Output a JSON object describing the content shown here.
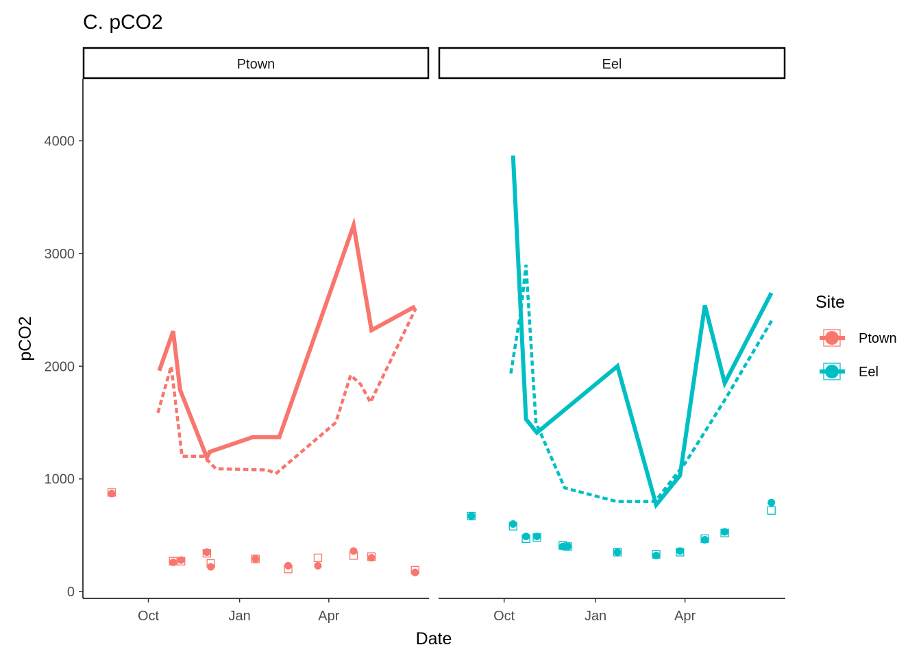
{
  "chart_data": {
    "type": "line",
    "title": "C. pCO2",
    "xlabel": "Date",
    "ylabel": "pCO2",
    "xticks": [
      "Oct",
      "Jan",
      "Apr"
    ],
    "yticks": [
      "0",
      "1000",
      "2000",
      "3000",
      "4000"
    ],
    "ylim": [
      -60,
      4550
    ],
    "xlim": [
      "2016-07-27",
      "2017-07-11"
    ],
    "grid": false,
    "legend": {
      "title": "Site",
      "placement": "right",
      "entries": [
        {
          "name": "Ptown",
          "color": "#F8766D"
        },
        {
          "name": "Eel",
          "color": "#00BFC4"
        }
      ]
    },
    "panels": [
      {
        "name": "Ptown",
        "color": "#F8766D",
        "solid_line": [
          {
            "x": "2016-10-12",
            "y": 1960
          },
          {
            "x": "2016-10-26",
            "y": 2310
          },
          {
            "x": "2016-11-02",
            "y": 1790
          },
          {
            "x": "2016-11-29",
            "y": 1190
          },
          {
            "x": "2016-12-02",
            "y": 1240
          },
          {
            "x": "2017-01-14",
            "y": 1370
          },
          {
            "x": "2017-02-10",
            "y": 1370
          },
          {
            "x": "2017-04-26",
            "y": 3250
          },
          {
            "x": "2017-05-14",
            "y": 2320
          },
          {
            "x": "2017-06-27",
            "y": 2530
          }
        ],
        "dotted_line": [
          {
            "x": "2016-10-11",
            "y": 1600
          },
          {
            "x": "2016-10-24",
            "y": 2000
          },
          {
            "x": "2016-11-04",
            "y": 1200
          },
          {
            "x": "2016-11-26",
            "y": 1200
          },
          {
            "x": "2016-12-08",
            "y": 1090
          },
          {
            "x": "2017-01-28",
            "y": 1080
          },
          {
            "x": "2017-02-07",
            "y": 1050
          },
          {
            "x": "2017-04-08",
            "y": 1500
          },
          {
            "x": "2017-04-23",
            "y": 1920
          },
          {
            "x": "2017-05-03",
            "y": 1840
          },
          {
            "x": "2017-05-13",
            "y": 1680
          },
          {
            "x": "2017-06-27",
            "y": 2500
          }
        ],
        "circles": [
          {
            "x": "2016-08-25",
            "y": 870
          },
          {
            "x": "2016-10-26",
            "y": 260
          },
          {
            "x": "2016-11-03",
            "y": 280
          },
          {
            "x": "2016-11-29",
            "y": 350
          },
          {
            "x": "2016-12-03",
            "y": 220
          },
          {
            "x": "2017-01-17",
            "y": 290
          },
          {
            "x": "2017-02-19",
            "y": 230
          },
          {
            "x": "2017-03-21",
            "y": 230
          },
          {
            "x": "2017-04-26",
            "y": 360
          },
          {
            "x": "2017-05-14",
            "y": 300
          },
          {
            "x": "2017-06-27",
            "y": 170
          }
        ],
        "squares": [
          {
            "x": "2016-08-25",
            "y": 880
          },
          {
            "x": "2016-10-26",
            "y": 270
          },
          {
            "x": "2016-11-03",
            "y": 270
          },
          {
            "x": "2016-11-29",
            "y": 340
          },
          {
            "x": "2016-12-03",
            "y": 250
          },
          {
            "x": "2017-01-17",
            "y": 290
          },
          {
            "x": "2017-02-19",
            "y": 200
          },
          {
            "x": "2017-03-21",
            "y": 300
          },
          {
            "x": "2017-04-26",
            "y": 320
          },
          {
            "x": "2017-05-14",
            "y": 310
          },
          {
            "x": "2017-06-27",
            "y": 190
          }
        ]
      },
      {
        "name": "Eel",
        "color": "#00BFC4",
        "solid_line": [
          {
            "x": "2016-10-10",
            "y": 3870
          },
          {
            "x": "2016-10-23",
            "y": 1530
          },
          {
            "x": "2016-11-03",
            "y": 1410
          },
          {
            "x": "2017-01-23",
            "y": 2000
          },
          {
            "x": "2017-03-03",
            "y": 770
          },
          {
            "x": "2017-03-27",
            "y": 1030
          },
          {
            "x": "2017-04-21",
            "y": 2540
          },
          {
            "x": "2017-05-11",
            "y": 1850
          },
          {
            "x": "2017-06-27",
            "y": 2650
          }
        ],
        "dotted_line": [
          {
            "x": "2016-10-08",
            "y": 1950
          },
          {
            "x": "2016-10-18",
            "y": 2500
          },
          {
            "x": "2016-10-23",
            "y": 2900
          },
          {
            "x": "2016-11-02",
            "y": 1500
          },
          {
            "x": "2016-12-01",
            "y": 920
          },
          {
            "x": "2017-01-22",
            "y": 800
          },
          {
            "x": "2017-03-02",
            "y": 800
          },
          {
            "x": "2017-04-02",
            "y": 1150
          },
          {
            "x": "2017-05-11",
            "y": 1700
          },
          {
            "x": "2017-06-27",
            "y": 2400
          }
        ],
        "circles": [
          {
            "x": "2016-08-29",
            "y": 670
          },
          {
            "x": "2016-10-10",
            "y": 600
          },
          {
            "x": "2016-10-23",
            "y": 490
          },
          {
            "x": "2016-11-03",
            "y": 490
          },
          {
            "x": "2016-11-29",
            "y": 400
          },
          {
            "x": "2016-12-04",
            "y": 400
          },
          {
            "x": "2017-01-23",
            "y": 350
          },
          {
            "x": "2017-03-03",
            "y": 320
          },
          {
            "x": "2017-03-27",
            "y": 360
          },
          {
            "x": "2017-04-21",
            "y": 460
          },
          {
            "x": "2017-05-11",
            "y": 530
          },
          {
            "x": "2017-06-27",
            "y": 790
          }
        ],
        "squares": [
          {
            "x": "2016-08-29",
            "y": 670
          },
          {
            "x": "2016-10-10",
            "y": 580
          },
          {
            "x": "2016-10-23",
            "y": 470
          },
          {
            "x": "2016-11-03",
            "y": 480
          },
          {
            "x": "2016-11-29",
            "y": 410
          },
          {
            "x": "2016-12-04",
            "y": 400
          },
          {
            "x": "2017-01-23",
            "y": 350
          },
          {
            "x": "2017-03-03",
            "y": 330
          },
          {
            "x": "2017-03-27",
            "y": 350
          },
          {
            "x": "2017-04-21",
            "y": 470
          },
          {
            "x": "2017-05-11",
            "y": 520
          },
          {
            "x": "2017-06-27",
            "y": 720
          }
        ]
      }
    ]
  }
}
